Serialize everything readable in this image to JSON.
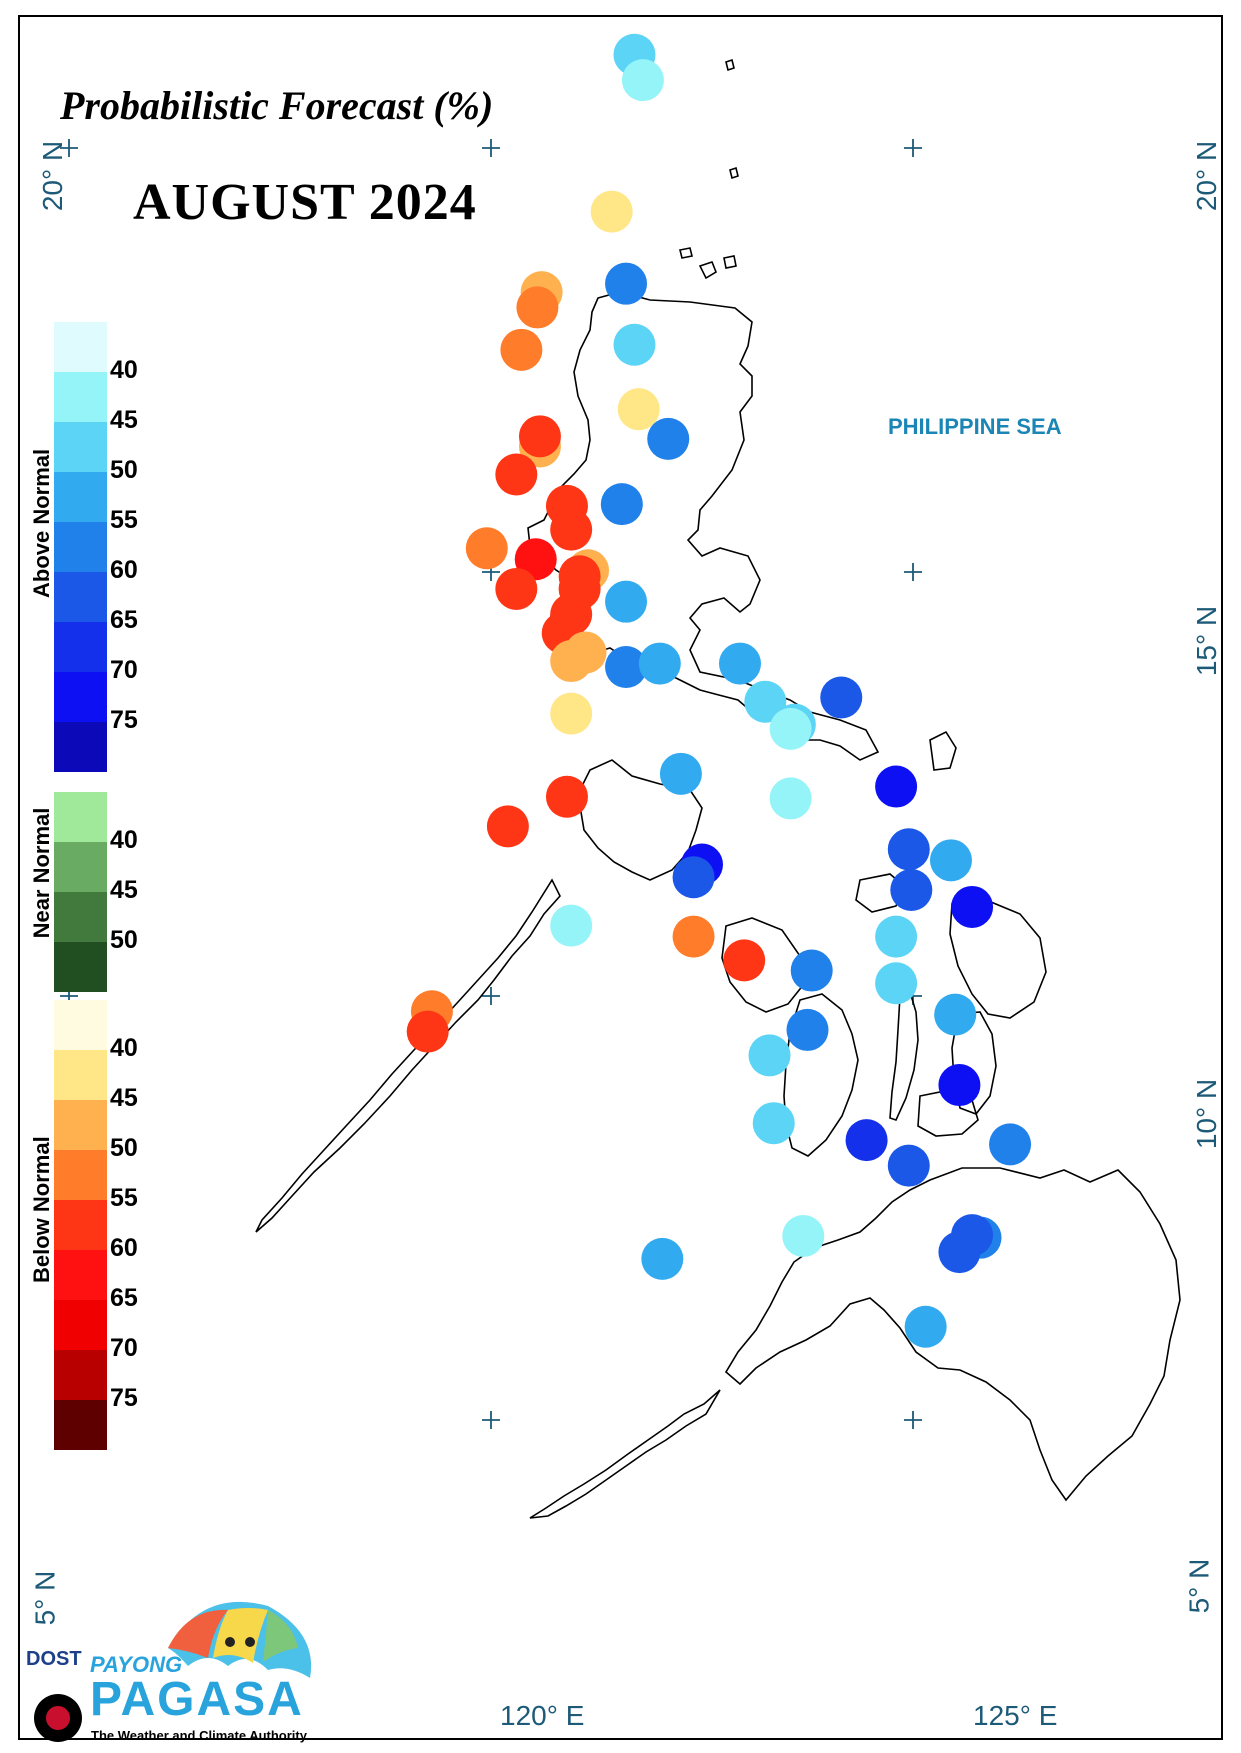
{
  "header": {
    "title": "Probabilistic Forecast (%)",
    "subtitle": "AUGUST 2024"
  },
  "axes": {
    "lat_20": "20° N",
    "lat_15": "15° N",
    "lat_10": "10° N",
    "lat_5": "5° N",
    "lon_120": "120° E",
    "lon_125": "125° E"
  },
  "map_label": "PHILIPPINE SEA",
  "legend": {
    "above_normal": {
      "label": "Above Normal",
      "ticks": [
        "40",
        "45",
        "50",
        "55",
        "60",
        "65",
        "70",
        "75"
      ],
      "colors": [
        "#dffbfd",
        "#94f4f8",
        "#5bd4f5",
        "#32aaf0",
        "#2181eb",
        "#1b58e8",
        "#1530ea",
        "#0d10f3",
        "#0b09b8"
      ]
    },
    "near_normal": {
      "label": "Near Normal",
      "ticks": [
        "40",
        "45",
        "50"
      ],
      "colors": [
        "#a0e89a",
        "#6aab63",
        "#427a3d",
        "#214f21"
      ]
    },
    "below_normal": {
      "label": "Below Normal",
      "ticks": [
        "40",
        "45",
        "50",
        "55",
        "60",
        "65",
        "70",
        "75"
      ],
      "colors": [
        "#fffbe0",
        "#ffe686",
        "#ffb150",
        "#ff7c2a",
        "#ff3615",
        "#ff1111",
        "#f00000",
        "#b80000",
        "#5e0000"
      ]
    }
  },
  "stations": [
    {
      "lon": 121.7,
      "lat": 21.1,
      "cat": "above",
      "level": 2
    },
    {
      "lon": 121.8,
      "lat": 20.8,
      "cat": "above",
      "level": 1
    },
    {
      "lon": 121.43,
      "lat": 19.25,
      "cat": "below",
      "level": 1
    },
    {
      "lon": 121.6,
      "lat": 18.4,
      "cat": "above",
      "level": 4
    },
    {
      "lon": 120.6,
      "lat": 18.3,
      "cat": "below",
      "level": 2
    },
    {
      "lon": 120.55,
      "lat": 18.12,
      "cat": "below",
      "level": 3
    },
    {
      "lon": 120.36,
      "lat": 17.62,
      "cat": "below",
      "level": 3
    },
    {
      "lon": 121.7,
      "lat": 17.68,
      "cat": "above",
      "level": 2
    },
    {
      "lon": 121.75,
      "lat": 16.92,
      "cat": "below",
      "level": 1
    },
    {
      "lon": 122.1,
      "lat": 16.57,
      "cat": "above",
      "level": 4
    },
    {
      "lon": 120.58,
      "lat": 16.48,
      "cat": "below",
      "level": 2
    },
    {
      "lon": 120.58,
      "lat": 16.6,
      "cat": "below",
      "level": 4
    },
    {
      "lon": 120.3,
      "lat": 16.15,
      "cat": "below",
      "level": 4
    },
    {
      "lon": 121.55,
      "lat": 15.8,
      "cat": "above",
      "level": 4
    },
    {
      "lon": 120.9,
      "lat": 15.78,
      "cat": "below",
      "level": 4
    },
    {
      "lon": 120.95,
      "lat": 15.5,
      "cat": "below",
      "level": 4
    },
    {
      "lon": 119.95,
      "lat": 15.28,
      "cat": "below",
      "level": 3
    },
    {
      "lon": 120.53,
      "lat": 15.15,
      "cat": "below",
      "level": 5
    },
    {
      "lon": 121.15,
      "lat": 15.02,
      "cat": "below",
      "level": 2
    },
    {
      "lon": 121.05,
      "lat": 14.95,
      "cat": "below",
      "level": 4
    },
    {
      "lon": 121.05,
      "lat": 14.8,
      "cat": "below",
      "level": 4
    },
    {
      "lon": 120.3,
      "lat": 14.8,
      "cat": "below",
      "level": 4
    },
    {
      "lon": 121.6,
      "lat": 14.65,
      "cat": "above",
      "level": 3
    },
    {
      "lon": 120.95,
      "lat": 14.5,
      "cat": "below",
      "level": 4
    },
    {
      "lon": 120.85,
      "lat": 14.28,
      "cat": "below",
      "level": 4
    },
    {
      "lon": 121.12,
      "lat": 14.05,
      "cat": "below",
      "level": 2
    },
    {
      "lon": 120.95,
      "lat": 13.95,
      "cat": "below",
      "level": 2
    },
    {
      "lon": 121.6,
      "lat": 13.88,
      "cat": "above",
      "level": 4
    },
    {
      "lon": 122.0,
      "lat": 13.92,
      "cat": "above",
      "level": 3
    },
    {
      "lon": 122.95,
      "lat": 13.92,
      "cat": "above",
      "level": 3
    },
    {
      "lon": 120.95,
      "lat": 13.33,
      "cat": "below",
      "level": 1
    },
    {
      "lon": 123.25,
      "lat": 13.47,
      "cat": "above",
      "level": 2
    },
    {
      "lon": 124.15,
      "lat": 13.52,
      "cat": "above",
      "level": 5
    },
    {
      "lon": 123.6,
      "lat": 13.2,
      "cat": "above",
      "level": 2
    },
    {
      "lon": 123.55,
      "lat": 13.15,
      "cat": "above",
      "level": 1
    },
    {
      "lon": 122.25,
      "lat": 12.62,
      "cat": "above",
      "level": 3
    },
    {
      "lon": 120.9,
      "lat": 12.35,
      "cat": "below",
      "level": 4
    },
    {
      "lon": 123.55,
      "lat": 12.33,
      "cat": "above",
      "level": 1
    },
    {
      "lon": 124.8,
      "lat": 12.47,
      "cat": "above",
      "level": 7
    },
    {
      "lon": 120.2,
      "lat": 12.0,
      "cat": "below",
      "level": 4
    },
    {
      "lon": 124.95,
      "lat": 11.73,
      "cat": "above",
      "level": 5
    },
    {
      "lon": 125.45,
      "lat": 11.6,
      "cat": "above",
      "level": 3
    },
    {
      "lon": 122.5,
      "lat": 11.55,
      "cat": "above",
      "level": 7
    },
    {
      "lon": 122.4,
      "lat": 11.4,
      "cat": "above",
      "level": 5
    },
    {
      "lon": 124.98,
      "lat": 11.25,
      "cat": "above",
      "level": 5
    },
    {
      "lon": 125.7,
      "lat": 11.05,
      "cat": "above",
      "level": 7
    },
    {
      "lon": 120.95,
      "lat": 10.83,
      "cat": "above",
      "level": 1
    },
    {
      "lon": 122.4,
      "lat": 10.7,
      "cat": "below",
      "level": 3
    },
    {
      "lon": 124.8,
      "lat": 10.7,
      "cat": "above",
      "level": 2
    },
    {
      "lon": 123.0,
      "lat": 10.42,
      "cat": "below",
      "level": 4
    },
    {
      "lon": 123.8,
      "lat": 10.3,
      "cat": "above",
      "level": 4
    },
    {
      "lon": 124.8,
      "lat": 10.15,
      "cat": "above",
      "level": 2
    },
    {
      "lon": 119.3,
      "lat": 9.82,
      "cat": "below",
      "level": 3
    },
    {
      "lon": 125.5,
      "lat": 9.78,
      "cat": "above",
      "level": 3
    },
    {
      "lon": 123.75,
      "lat": 9.6,
      "cat": "above",
      "level": 4
    },
    {
      "lon": 119.25,
      "lat": 9.58,
      "cat": "below",
      "level": 4
    },
    {
      "lon": 123.3,
      "lat": 9.3,
      "cat": "above",
      "level": 2
    },
    {
      "lon": 125.55,
      "lat": 8.95,
      "cat": "above",
      "level": 7
    },
    {
      "lon": 123.35,
      "lat": 8.5,
      "cat": "above",
      "level": 2
    },
    {
      "lon": 124.45,
      "lat": 8.3,
      "cat": "above",
      "level": 6
    },
    {
      "lon": 126.15,
      "lat": 8.25,
      "cat": "above",
      "level": 4
    },
    {
      "lon": 124.95,
      "lat": 8.0,
      "cat": "above",
      "level": 5
    },
    {
      "lon": 123.7,
      "lat": 7.17,
      "cat": "above",
      "level": 1
    },
    {
      "lon": 125.8,
      "lat": 7.15,
      "cat": "above",
      "level": 4
    },
    {
      "lon": 125.7,
      "lat": 7.18,
      "cat": "above",
      "level": 5
    },
    {
      "lon": 125.55,
      "lat": 6.98,
      "cat": "above",
      "level": 5
    },
    {
      "lon": 122.03,
      "lat": 6.9,
      "cat": "above",
      "level": 3
    },
    {
      "lon": 125.15,
      "lat": 6.1,
      "cat": "above",
      "level": 3
    }
  ],
  "logo": {
    "dost": "DOST",
    "payong": "PAYONG",
    "pagasa": "PAGASA",
    "tagline": "The Weather and Climate Authority"
  }
}
